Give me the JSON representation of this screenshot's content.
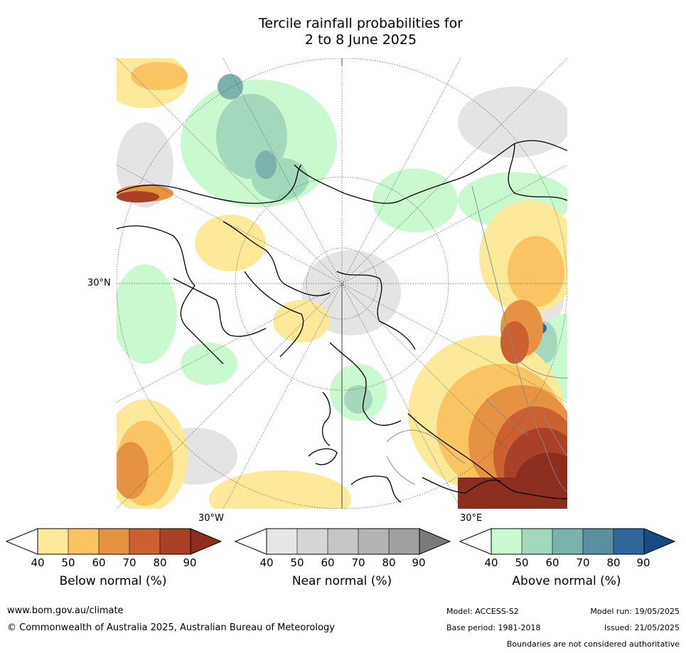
{
  "title_line1": "Tercile rainfall probabilities for",
  "title_line2": "2 to 8 June 2025",
  "map": {
    "lat_label": "30°N",
    "lon_label_w": "30°W",
    "lon_label_e": "30°E"
  },
  "colorbars": [
    {
      "label": "Below normal (%)",
      "ticks": [
        "40",
        "50",
        "60",
        "70",
        "80",
        "90"
      ],
      "colors": [
        "#ffffff",
        "#fde99a",
        "#fbc463",
        "#e59243",
        "#cb6130",
        "#a84125",
        "#8c2e1d"
      ]
    },
    {
      "label": "Near normal (%)",
      "ticks": [
        "40",
        "50",
        "60",
        "70",
        "80",
        "90"
      ],
      "colors": [
        "#ffffff",
        "#e6e6e6",
        "#d6d6d6",
        "#c6c6c6",
        "#b4b4b4",
        "#a0a0a0",
        "#7a7a7a"
      ]
    },
    {
      "label": "Above normal (%)",
      "ticks": [
        "40",
        "50",
        "60",
        "70",
        "80",
        "90"
      ],
      "colors": [
        "#ffffff",
        "#c9f9cf",
        "#a2d9bd",
        "#7ab3ac",
        "#5a8fa0",
        "#31669a",
        "#184b85"
      ]
    }
  ],
  "footer": {
    "url": "www.bom.gov.au/climate",
    "copyright": "© Commonwealth of Australia 2025, Australian Bureau of Meteorology",
    "model": "Model: ACCESS-S2",
    "model_run": "Model run: 19/05/2025",
    "base_period": "Base period: 1981-2018",
    "issued": "Issued: 21/05/2025",
    "disclaimer": "Boundaries are not considered authoritative"
  }
}
